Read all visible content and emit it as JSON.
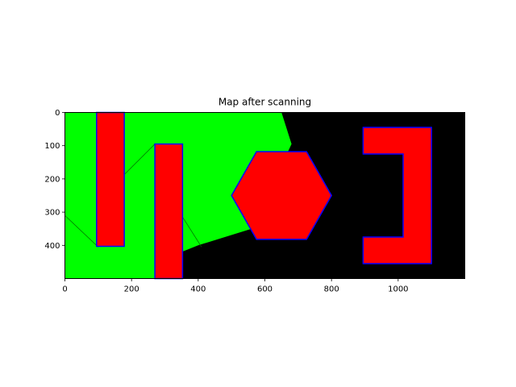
{
  "chart_data": {
    "type": "heatmap",
    "title": "Map after scanning",
    "xlabel": "",
    "ylabel": "",
    "xlim": [
      0,
      1200
    ],
    "ylim": [
      500,
      0
    ],
    "x_ticks": [
      0,
      200,
      400,
      600,
      800,
      1000
    ],
    "y_ticks": [
      0,
      100,
      200,
      300,
      400
    ],
    "background_color": "#000000",
    "scanned_color": "#00ff00",
    "obstacle_fill": "#ff0000",
    "obstacle_edge": "#0000ff",
    "scanned_region": [
      [
        0,
        0
      ],
      [
        650,
        0
      ],
      [
        680,
        95
      ],
      [
        560,
        350
      ],
      [
        400,
        400
      ],
      [
        350,
        420
      ],
      [
        350,
        500
      ],
      [
        0,
        500
      ]
    ],
    "scan_rays": [
      [
        [
          0,
          310
        ],
        [
          100,
          405
        ]
      ],
      [
        [
          180,
          185
        ],
        [
          270,
          95
        ]
      ],
      [
        [
          350,
          310
        ],
        [
          410,
          405
        ]
      ]
    ],
    "obstacles": [
      {
        "name": "rectangle",
        "points": [
          [
            95,
            0
          ],
          [
            178,
            0
          ],
          [
            178,
            403
          ],
          [
            95,
            403
          ]
        ]
      },
      {
        "name": "rectangle",
        "points": [
          [
            270,
            95
          ],
          [
            353,
            95
          ],
          [
            353,
            500
          ],
          [
            270,
            500
          ]
        ]
      },
      {
        "name": "hexagon",
        "points": [
          [
            500,
            250
          ],
          [
            575,
            118
          ],
          [
            725,
            118
          ],
          [
            800,
            250
          ],
          [
            725,
            382
          ],
          [
            575,
            382
          ]
        ]
      },
      {
        "name": "bracket",
        "points": [
          [
            895,
            45
          ],
          [
            1100,
            45
          ],
          [
            1100,
            455
          ],
          [
            895,
            455
          ],
          [
            895,
            375
          ],
          [
            1015,
            375
          ],
          [
            1015,
            125
          ],
          [
            895,
            125
          ]
        ]
      }
    ]
  }
}
